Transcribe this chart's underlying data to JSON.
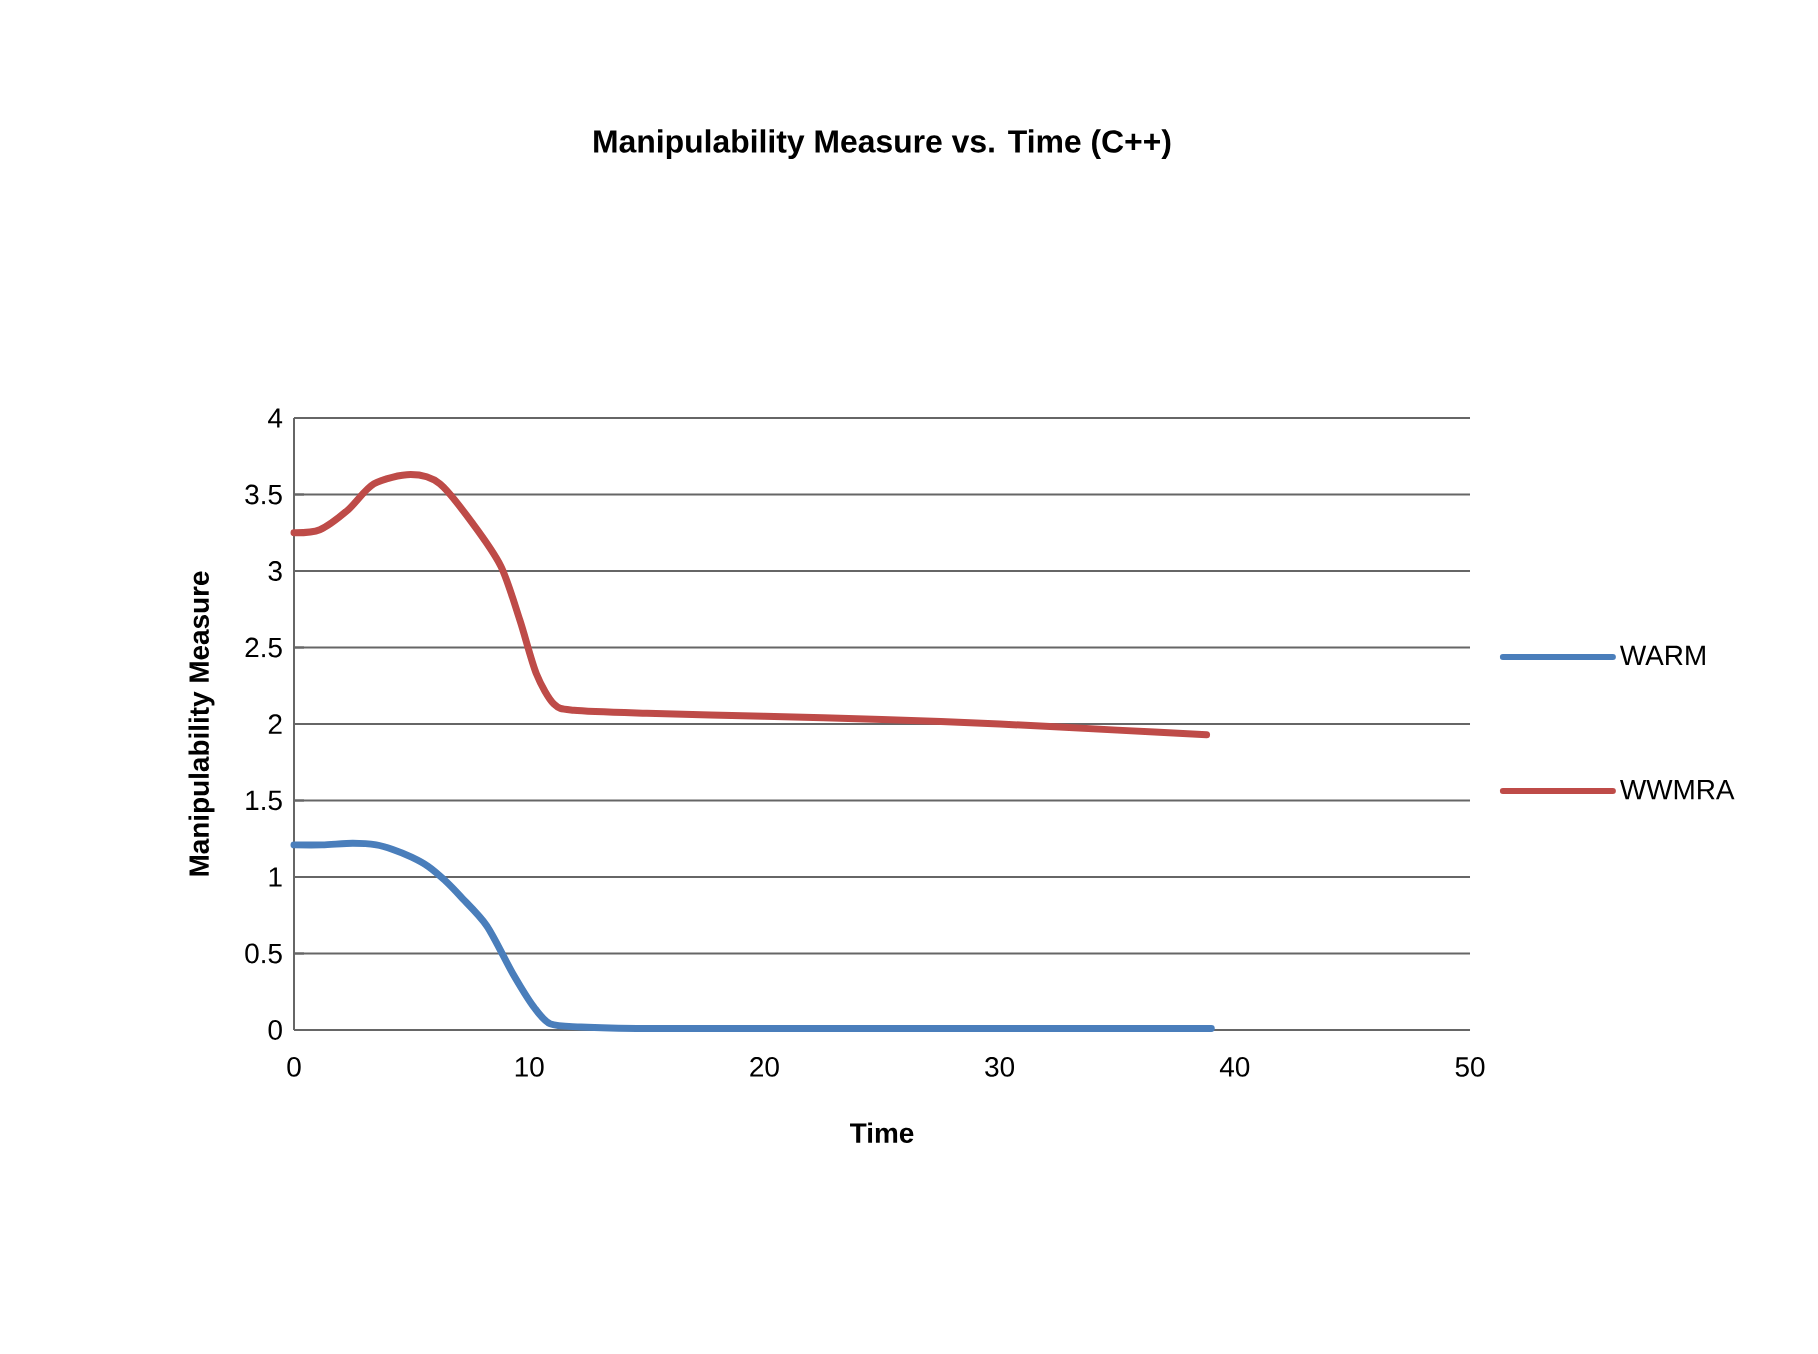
{
  "chart_data": {
    "type": "line",
    "title": "Manipulability Measure vs. Time (C++)",
    "xlabel": "Time",
    "ylabel": "Manipulability Measure",
    "series": [
      {
        "name": "WARM",
        "color": "#4a7ebb",
        "x": [
          0,
          1.2,
          2.5,
          3.5,
          4.2,
          5.0,
          5.7,
          6.4,
          7.1,
          8.2,
          9.3,
          10.2,
          10.9,
          12.2,
          15,
          20,
          25,
          30,
          35,
          39
        ],
        "values": [
          1.21,
          1.21,
          1.22,
          1.21,
          1.18,
          1.13,
          1.07,
          0.98,
          0.87,
          0.68,
          0.37,
          0.15,
          0.04,
          0.02,
          0.01,
          0.01,
          0.01,
          0.01,
          0.01,
          0.01
        ]
      },
      {
        "name": "WWMRA",
        "color": "#be4b48",
        "x": [
          0,
          1.1,
          2.3,
          3.4,
          4.96,
          6.2,
          7.6,
          8.8,
          9.6,
          10.3,
          11.05,
          11.9,
          15,
          20,
          25,
          30,
          35,
          38.8
        ],
        "values": [
          3.25,
          3.27,
          3.4,
          3.57,
          3.63,
          3.57,
          3.31,
          3.03,
          2.68,
          2.33,
          2.13,
          2.09,
          2.07,
          2.05,
          2.03,
          2.0,
          1.96,
          1.93
        ]
      }
    ],
    "xlim": [
      0,
      50
    ],
    "xticks": [
      0,
      10,
      20,
      30,
      40,
      50
    ],
    "ylim": [
      0,
      4
    ],
    "yticks": [
      0,
      0.5,
      1,
      1.5,
      2,
      2.5,
      3,
      3.5,
      4
    ],
    "grid": "y",
    "legend": "right",
    "marker": "none",
    "line_style": "solid"
  }
}
